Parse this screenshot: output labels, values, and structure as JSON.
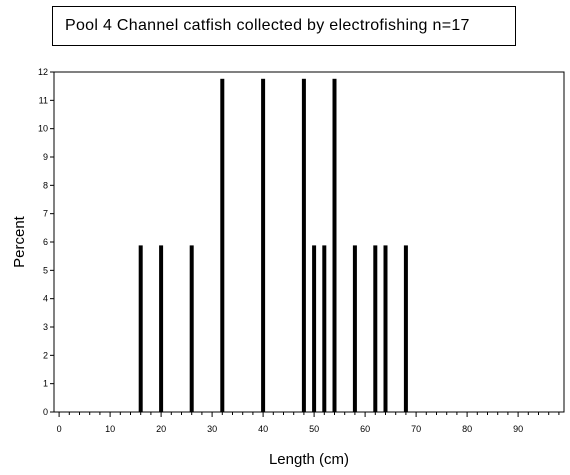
{
  "chart_data": {
    "type": "bar",
    "title": "Pool 4 Channel catfish collected by electrofishing n=17",
    "xlabel": "Length (cm)",
    "ylabel": "Percent",
    "xlim": [
      -1,
      99
    ],
    "ylim": [
      0,
      12
    ],
    "x_ticks": [
      0,
      10,
      20,
      30,
      40,
      50,
      60,
      70,
      80,
      90
    ],
    "y_ticks": [
      0,
      1,
      2,
      3,
      4,
      5,
      6,
      7,
      8,
      9,
      10,
      11,
      12
    ],
    "grid": false,
    "legend": "none",
    "bar_color": "#000000",
    "bars": [
      {
        "x": 16,
        "value": 5.88
      },
      {
        "x": 20,
        "value": 5.88
      },
      {
        "x": 26,
        "value": 5.88
      },
      {
        "x": 32,
        "value": 11.76
      },
      {
        "x": 40,
        "value": 11.76
      },
      {
        "x": 48,
        "value": 11.76
      },
      {
        "x": 50,
        "value": 5.88
      },
      {
        "x": 52,
        "value": 5.88
      },
      {
        "x": 54,
        "value": 11.76
      },
      {
        "x": 58,
        "value": 5.88
      },
      {
        "x": 62,
        "value": 5.88
      },
      {
        "x": 64,
        "value": 5.88
      },
      {
        "x": 68,
        "value": 5.88
      }
    ]
  }
}
